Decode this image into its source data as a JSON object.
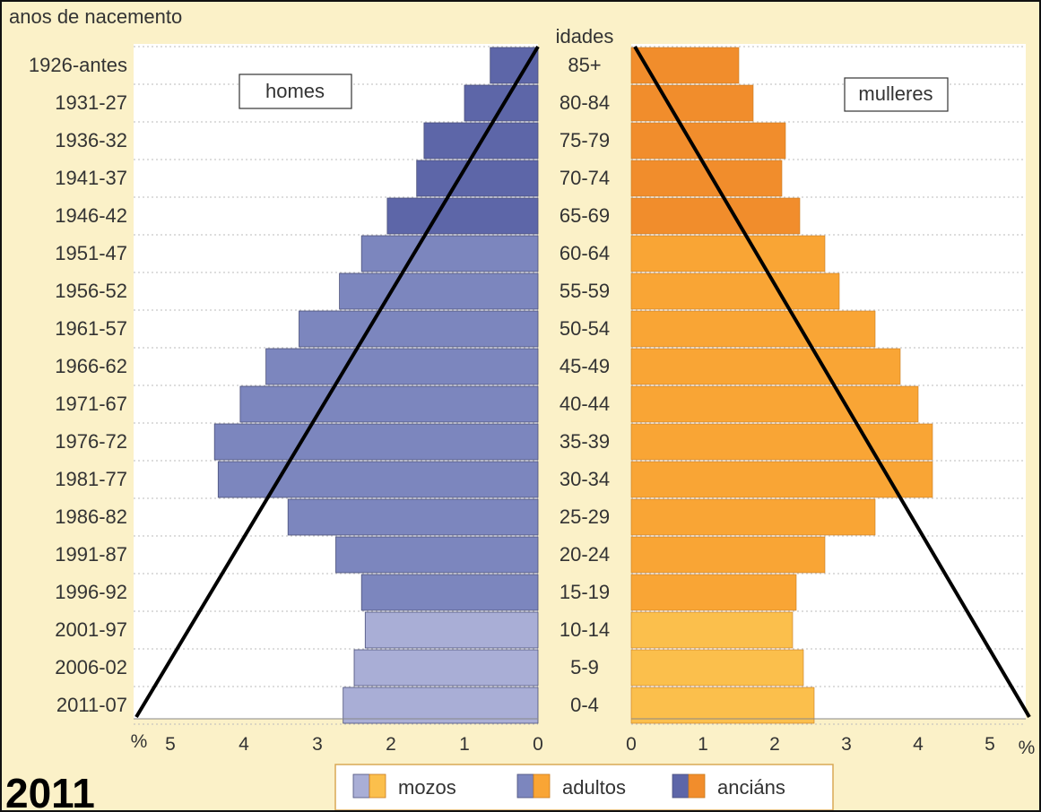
{
  "chart_data": {
    "type": "bar",
    "left_header": "anos de nacemento",
    "center_header": "idades",
    "age_groups": [
      "85+",
      "80-84",
      "75-79",
      "70-74",
      "65-69",
      "60-64",
      "55-59",
      "50-54",
      "45-49",
      "40-44",
      "35-39",
      "30-34",
      "25-29",
      "20-24",
      "15-19",
      "10-14",
      "5-9",
      "0-4"
    ],
    "birth_years": [
      "1926-antes",
      "1931-27",
      "1936-32",
      "1941-37",
      "1946-42",
      "1951-47",
      "1956-52",
      "1961-57",
      "1966-62",
      "1971-67",
      "1976-72",
      "1981-77",
      "1986-82",
      "1991-87",
      "1996-92",
      "2001-97",
      "2006-02",
      "2011-07"
    ],
    "groups": [
      "anciáns",
      "anciáns",
      "anciáns",
      "anciáns",
      "anciáns",
      "adultos",
      "adultos",
      "adultos",
      "adultos",
      "adultos",
      "adultos",
      "adultos",
      "adultos",
      "adultos",
      "adultos",
      "mozos",
      "mozos",
      "mozos"
    ],
    "series": [
      {
        "name": "homes",
        "values": [
          0.65,
          1.0,
          1.55,
          1.65,
          2.05,
          2.4,
          2.7,
          3.25,
          3.7,
          4.05,
          4.4,
          4.35,
          3.4,
          2.75,
          2.4,
          2.35,
          2.5,
          2.65
        ]
      },
      {
        "name": "mulleres",
        "values": [
          1.5,
          1.7,
          2.15,
          2.1,
          2.35,
          2.7,
          2.9,
          3.4,
          3.75,
          4.0,
          4.2,
          4.2,
          3.4,
          2.7,
          2.3,
          2.25,
          2.4,
          2.55
        ]
      }
    ],
    "x_ticks_left": [
      "5",
      "4",
      "3",
      "2",
      "1",
      "0"
    ],
    "x_ticks_right": [
      "0",
      "1",
      "2",
      "3",
      "4",
      "5"
    ],
    "x_unit": "%",
    "xlim": [
      0,
      5.5
    ],
    "legend": {
      "placement": "bottom",
      "items": [
        "mozos",
        "adultos",
        "anciáns"
      ]
    },
    "colors": {
      "homes_mozos": "#a9aed6",
      "homes_adultos": "#7c86be",
      "homes_ancians": "#5d66a8",
      "mulleres_mozos": "#fbbf4c",
      "mulleres_adultos": "#f9a535",
      "mulleres_ancians": "#f18d2c",
      "background": "#fbf1c8",
      "plot_bg": "#ffffff"
    }
  },
  "panel_labels": {
    "men": "homes",
    "women": "mulleres"
  },
  "year": "2011"
}
